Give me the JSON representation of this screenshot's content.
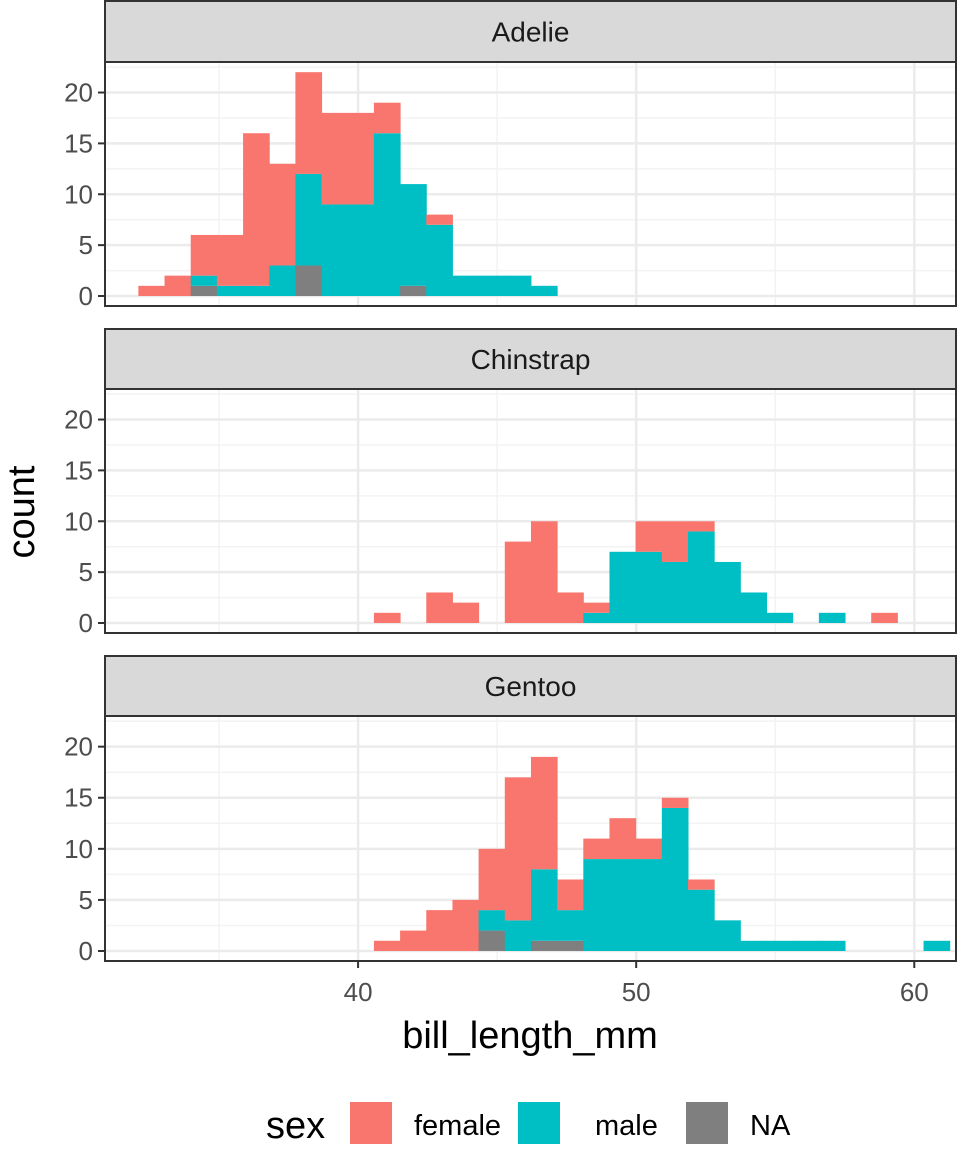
{
  "colors": {
    "female": "#f8766d",
    "male": "#00bfc4",
    "NA": "#7f7f7f",
    "strip_bg": "#d9d9d9",
    "grid_major": "#ebebeb",
    "grid_minor": "#f3f3f3",
    "frame": "#333333",
    "tick_text": "#4d4d4d"
  },
  "chart_data": {
    "type": "histogram",
    "position": "stacked",
    "xlabel": "bill_length_mm",
    "ylabel": "count",
    "xlim": [
      30.9,
      61.5
    ],
    "ylim": [
      0,
      23
    ],
    "x_ticks": [
      40,
      50,
      60
    ],
    "y_ticks": [
      0,
      5,
      10,
      15,
      20
    ],
    "bin_start": 32.1,
    "bin_width": 0.9411,
    "stack_order": [
      "NA",
      "male",
      "female"
    ],
    "legend": {
      "title": "sex",
      "placement": "bottom",
      "entries": [
        {
          "key": "female",
          "label": "female"
        },
        {
          "key": "male",
          "label": "male"
        },
        {
          "key": "NA",
          "label": "NA"
        }
      ]
    },
    "panels": [
      {
        "title": "Adelie",
        "series": {
          "female": [
            1,
            2,
            4,
            5,
            15,
            10,
            10,
            9,
            9,
            3,
            0,
            1,
            0,
            0,
            0,
            0,
            0,
            0,
            0,
            0,
            0,
            0,
            0,
            0,
            0,
            0,
            0,
            0,
            0,
            0,
            0,
            0
          ],
          "male": [
            0,
            0,
            1,
            1,
            1,
            3,
            9,
            9,
            9,
            16,
            10,
            7,
            2,
            2,
            2,
            1,
            0,
            0,
            0,
            0,
            0,
            0,
            0,
            0,
            0,
            0,
            0,
            0,
            0,
            0,
            0,
            0
          ],
          "NA": [
            0,
            0,
            1,
            0,
            0,
            0,
            3,
            0,
            0,
            0,
            1,
            0,
            0,
            0,
            0,
            0,
            0,
            0,
            0,
            0,
            0,
            0,
            0,
            0,
            0,
            0,
            0,
            0,
            0,
            0,
            0,
            0
          ]
        }
      },
      {
        "title": "Chinstrap",
        "series": {
          "female": [
            0,
            0,
            0,
            0,
            0,
            0,
            0,
            0,
            0,
            1,
            0,
            3,
            2,
            0,
            8,
            10,
            3,
            1,
            0,
            3,
            4,
            1,
            0,
            0,
            0,
            0,
            0,
            0,
            1,
            0,
            0,
            0
          ],
          "male": [
            0,
            0,
            0,
            0,
            0,
            0,
            0,
            0,
            0,
            0,
            0,
            0,
            0,
            0,
            0,
            0,
            0,
            1,
            7,
            7,
            6,
            9,
            6,
            3,
            1,
            0,
            1,
            0,
            0,
            0,
            0,
            0
          ],
          "NA": [
            0,
            0,
            0,
            0,
            0,
            0,
            0,
            0,
            0,
            0,
            0,
            0,
            0,
            0,
            0,
            0,
            0,
            0,
            0,
            0,
            0,
            0,
            0,
            0,
            0,
            0,
            0,
            0,
            0,
            0,
            0,
            0
          ]
        }
      },
      {
        "title": "Gentoo",
        "series": {
          "female": [
            0,
            0,
            0,
            0,
            0,
            0,
            0,
            0,
            0,
            1,
            2,
            4,
            5,
            6,
            14,
            11,
            3,
            2,
            4,
            2,
            1,
            1,
            0,
            0,
            0,
            0,
            0,
            0,
            0,
            0,
            0,
            0
          ],
          "male": [
            0,
            0,
            0,
            0,
            0,
            0,
            0,
            0,
            0,
            0,
            0,
            0,
            0,
            2,
            3,
            7,
            3,
            9,
            9,
            9,
            14,
            6,
            3,
            1,
            1,
            1,
            1,
            0,
            0,
            0,
            1,
            0
          ],
          "NA": [
            0,
            0,
            0,
            0,
            0,
            0,
            0,
            0,
            0,
            0,
            0,
            0,
            0,
            2,
            0,
            1,
            1,
            0,
            0,
            0,
            0,
            0,
            0,
            0,
            0,
            0,
            0,
            0,
            0,
            0,
            0,
            0
          ]
        }
      }
    ]
  }
}
